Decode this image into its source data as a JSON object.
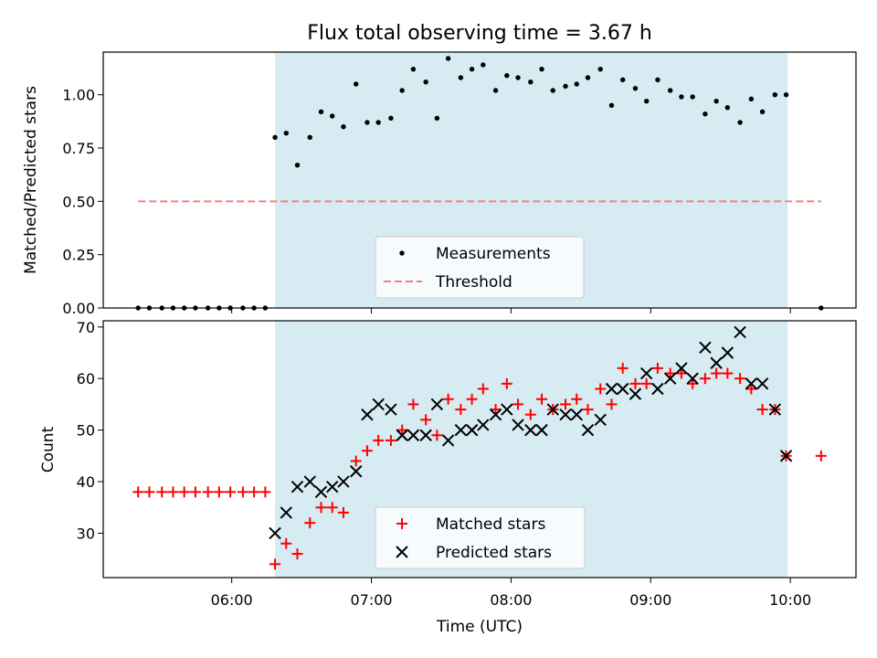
{
  "chart_data": [
    {
      "type": "scatter",
      "title": "Flux total observing time = 3.67 h",
      "xlabel": "",
      "ylabel": "Matched/Predicted stars",
      "xlim": [
        5.08,
        10.47
      ],
      "ylim": [
        0.0,
        1.2
      ],
      "x_unit": "hours UTC",
      "shaded_span": [
        6.31,
        9.98
      ],
      "yticks": [
        0.0,
        0.25,
        0.5,
        0.75,
        1.0
      ],
      "ytick_labels": [
        "0.00",
        "0.25",
        "0.50",
        "0.75",
        "1.00"
      ],
      "threshold": {
        "y": 0.5,
        "x_range": [
          5.33,
          10.22
        ]
      },
      "legend": {
        "position": "lower center",
        "entries": [
          {
            "label": "Measurements",
            "marker": "dot",
            "color": "#000000"
          },
          {
            "label": "Threshold",
            "marker": "dashed-line",
            "color": "#f08080"
          }
        ]
      },
      "series": [
        {
          "name": "Measurements",
          "x": [
            5.33,
            5.41,
            5.5,
            5.58,
            5.66,
            5.74,
            5.83,
            5.91,
            5.99,
            6.08,
            6.16,
            6.24,
            6.31,
            6.39,
            6.47,
            6.56,
            6.64,
            6.72,
            6.8,
            6.89,
            6.97,
            7.05,
            7.14,
            7.22,
            7.3,
            7.39,
            7.47,
            7.55,
            7.64,
            7.72,
            7.8,
            7.89,
            7.97,
            8.05,
            8.14,
            8.22,
            8.3,
            8.39,
            8.47,
            8.55,
            8.64,
            8.72,
            8.8,
            8.89,
            8.97,
            9.05,
            9.14,
            9.22,
            9.3,
            9.39,
            9.47,
            9.55,
            9.64,
            9.72,
            9.8,
            9.89,
            9.97,
            10.22
          ],
          "y": [
            0,
            0,
            0,
            0,
            0,
            0,
            0,
            0,
            0,
            0,
            0,
            0,
            0.8,
            0.82,
            0.67,
            0.8,
            0.92,
            0.9,
            0.85,
            1.05,
            0.87,
            0.87,
            0.89,
            1.02,
            1.12,
            1.06,
            0.89,
            1.17,
            1.08,
            1.12,
            1.14,
            1.02,
            1.09,
            1.08,
            1.06,
            1.12,
            1.02,
            1.04,
            1.05,
            1.08,
            1.12,
            0.95,
            1.07,
            1.03,
            0.97,
            1.07,
            1.02,
            0.99,
            0.99,
            0.91,
            0.97,
            0.94,
            0.87,
            0.98,
            0.92,
            1.0,
            1.0,
            0
          ]
        }
      ]
    },
    {
      "type": "scatter",
      "title": "",
      "xlabel": "Time (UTC)",
      "ylabel": "Count",
      "xlim": [
        5.08,
        10.47
      ],
      "ylim": [
        21.4,
        71.2
      ],
      "x_unit": "hours UTC",
      "shaded_span": [
        6.31,
        9.98
      ],
      "xticks": [
        6,
        7,
        8,
        9,
        10
      ],
      "xtick_labels": [
        "06:00",
        "07:00",
        "08:00",
        "09:00",
        "10:00"
      ],
      "yticks": [
        30,
        40,
        50,
        60,
        70
      ],
      "ytick_labels": [
        "30",
        "40",
        "50",
        "60",
        "70"
      ],
      "legend": {
        "position": "lower center",
        "entries": [
          {
            "label": "Matched stars",
            "marker": "plus",
            "color": "#ff0000"
          },
          {
            "label": "Predicted stars",
            "marker": "x",
            "color": "#000000"
          }
        ]
      },
      "series": [
        {
          "name": "Matched stars",
          "x": [
            5.33,
            5.41,
            5.5,
            5.58,
            5.66,
            5.74,
            5.83,
            5.91,
            5.99,
            6.08,
            6.16,
            6.24,
            6.31,
            6.39,
            6.47,
            6.56,
            6.64,
            6.72,
            6.8,
            6.89,
            6.97,
            7.05,
            7.14,
            7.22,
            7.3,
            7.39,
            7.47,
            7.55,
            7.64,
            7.72,
            7.8,
            7.89,
            7.97,
            8.05,
            8.14,
            8.22,
            8.3,
            8.39,
            8.47,
            8.55,
            8.64,
            8.72,
            8.8,
            8.89,
            8.97,
            9.05,
            9.14,
            9.22,
            9.3,
            9.39,
            9.47,
            9.55,
            9.64,
            9.72,
            9.8,
            9.89,
            9.97,
            10.22
          ],
          "y": [
            38,
            38,
            38,
            38,
            38,
            38,
            38,
            38,
            38,
            38,
            38,
            38,
            24,
            28,
            26,
            32,
            35,
            35,
            34,
            44,
            46,
            48,
            48,
            50,
            55,
            52,
            49,
            56,
            54,
            56,
            58,
            54,
            59,
            55,
            53,
            56,
            54,
            55,
            56,
            54,
            58,
            55,
            62,
            59,
            59,
            62,
            61,
            61,
            59,
            60,
            61,
            61,
            60,
            58,
            54,
            54,
            45,
            45
          ]
        },
        {
          "name": "Predicted stars",
          "x": [
            6.31,
            6.39,
            6.47,
            6.56,
            6.64,
            6.72,
            6.8,
            6.89,
            6.97,
            7.05,
            7.14,
            7.22,
            7.3,
            7.39,
            7.47,
            7.55,
            7.64,
            7.72,
            7.8,
            7.89,
            7.97,
            8.05,
            8.14,
            8.22,
            8.3,
            8.39,
            8.47,
            8.55,
            8.64,
            8.72,
            8.8,
            8.89,
            8.97,
            9.05,
            9.14,
            9.22,
            9.3,
            9.39,
            9.47,
            9.55,
            9.64,
            9.72,
            9.8,
            9.89,
            9.97
          ],
          "y": [
            30,
            34,
            39,
            40,
            38,
            39,
            40,
            42,
            53,
            55,
            54,
            49,
            49,
            49,
            55,
            48,
            50,
            50,
            51,
            53,
            54,
            51,
            50,
            50,
            54,
            53,
            53,
            50,
            52,
            58,
            58,
            57,
            61,
            58,
            60,
            62,
            60,
            66,
            63,
            65,
            69,
            59,
            59,
            54,
            45
          ]
        }
      ]
    }
  ]
}
